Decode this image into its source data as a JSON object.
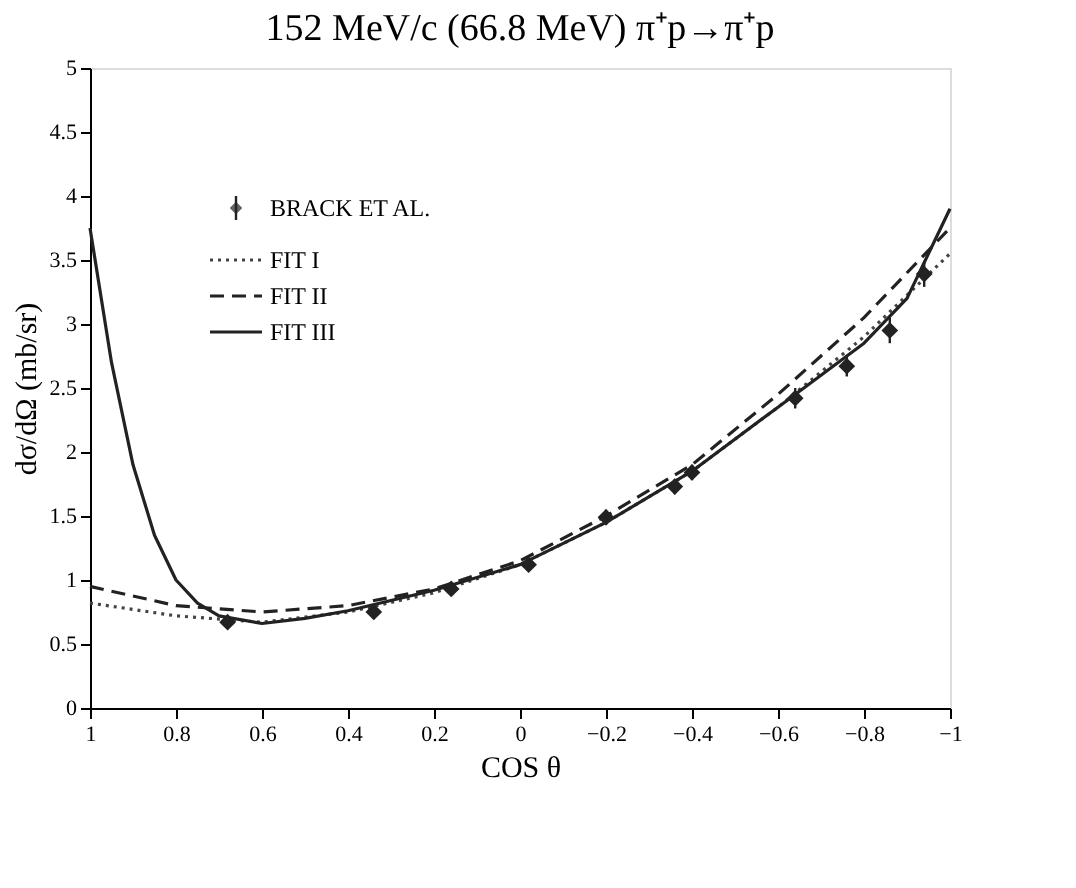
{
  "chart_data": {
    "type": "line",
    "title": "152 MeV/c (66.8 MeV)  π⁺p→π⁺p",
    "xlabel": "COS θ",
    "ylabel": "dσ/dΩ (mb/sr)",
    "xlim": [
      1,
      -1
    ],
    "xticks": [
      1,
      0.8,
      0.6,
      0.4,
      0.2,
      0,
      -0.2,
      -0.4,
      -0.6,
      -0.8,
      -1
    ],
    "ylim": [
      0,
      5
    ],
    "yticks": [
      0,
      0.5,
      1,
      1.5,
      2,
      2.5,
      3,
      3.5,
      4,
      4.5,
      5
    ],
    "grid": false,
    "legend": "top left",
    "series": [
      {
        "name": "BRACK ET AL.",
        "type": "scatter",
        "marker": "diamond",
        "color": "#222222",
        "x": [
          0.68,
          0.34,
          0.16,
          -0.02,
          -0.2,
          -0.36,
          -0.4,
          -0.64,
          -0.76,
          -0.86,
          -0.94
        ],
        "values": [
          0.67,
          0.75,
          0.93,
          1.12,
          1.49,
          1.73,
          1.84,
          2.42,
          2.67,
          2.95,
          3.39
        ],
        "errors": [
          0.05,
          0.05,
          0.05,
          0.05,
          0.06,
          0.06,
          0.06,
          0.08,
          0.08,
          0.1,
          0.1
        ]
      },
      {
        "name": "FIT I",
        "type": "line",
        "line_style": "dotted",
        "color": "#444444",
        "x": [
          1,
          0.8,
          0.6,
          0.4,
          0.2,
          0,
          -0.2,
          -0.4,
          -0.6,
          -0.8,
          -1
        ],
        "values": [
          0.82,
          0.72,
          0.67,
          0.75,
          0.9,
          1.12,
          1.45,
          1.85,
          2.35,
          2.9,
          3.55
        ]
      },
      {
        "name": "FIT II",
        "type": "line",
        "line_style": "dashed",
        "color": "#222222",
        "x": [
          1,
          0.8,
          0.6,
          0.4,
          0.2,
          0,
          -0.2,
          -0.4,
          -0.6,
          -0.8,
          -1
        ],
        "values": [
          0.95,
          0.8,
          0.75,
          0.8,
          0.93,
          1.15,
          1.5,
          1.9,
          2.45,
          3.05,
          3.75
        ]
      },
      {
        "name": "FIT III",
        "type": "line",
        "line_style": "solid",
        "color": "#222222",
        "x": [
          1,
          0.95,
          0.9,
          0.85,
          0.8,
          0.75,
          0.7,
          0.6,
          0.5,
          0.4,
          0.2,
          0,
          -0.2,
          -0.4,
          -0.6,
          -0.8,
          -0.9,
          -1
        ],
        "values": [
          3.75,
          2.7,
          1.9,
          1.35,
          1.0,
          0.82,
          0.72,
          0.66,
          0.7,
          0.76,
          0.92,
          1.12,
          1.45,
          1.85,
          2.35,
          2.85,
          3.2,
          3.9
        ]
      }
    ]
  }
}
